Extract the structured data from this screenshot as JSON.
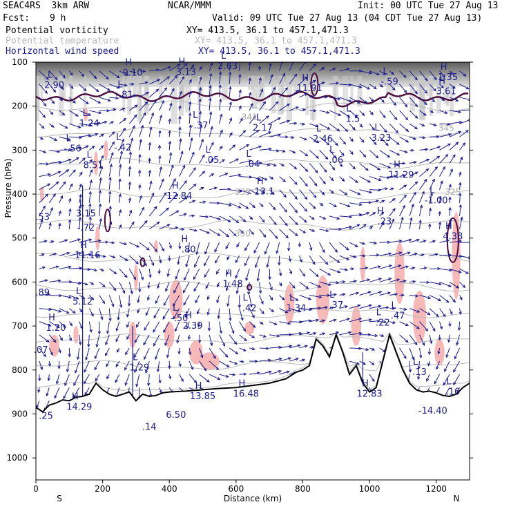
{
  "header": {
    "model": "SEAC4RS  3km ARW",
    "org": "NCAR/MMM",
    "init": "Init: 00 UTC Tue 27 Aug 13",
    "fcst_label": "Fcst:",
    "fcst_value": "9 h",
    "valid": "Valid: 09 UTC Tue 27 Aug 13 (04 CDT Tue 27 Aug 13)",
    "fields": [
      {
        "name": "Potential vorticity",
        "xy": "XY= 413.5, 36.1 to 457.1,471.3"
      },
      {
        "name": "Potential temperature",
        "xy": "XY= 413.5, 36.1 to 457.1,471.3"
      },
      {
        "name": "Horizontal wind speed",
        "xy": "XY= 413.5, 36.1 to 457.1,471.3"
      }
    ]
  },
  "colors": {
    "pv": "#4a0a3a",
    "theta": "#b8b8b8",
    "wind": "#1a1a8c",
    "pink": "#f7b8b8"
  },
  "chart_data": {
    "type": "cross-section",
    "xlabel": "Distance (km)",
    "ylabel": "Pressure (hPa)",
    "xlim": [
      0,
      1300
    ],
    "ylim": [
      1050,
      100
    ],
    "x_ticks": [
      0,
      200,
      400,
      600,
      800,
      1000,
      1200
    ],
    "y_ticks": [
      100,
      200,
      300,
      400,
      500,
      600,
      700,
      800,
      900,
      1000
    ],
    "left_end": "S",
    "right_end": "N",
    "terrain": [
      [
        0,
        885
      ],
      [
        20,
        895
      ],
      [
        40,
        880
      ],
      [
        60,
        875
      ],
      [
        80,
        868
      ],
      [
        100,
        870
      ],
      [
        120,
        862
      ],
      [
        140,
        860
      ],
      [
        160,
        855
      ],
      [
        180,
        830
      ],
      [
        200,
        845
      ],
      [
        220,
        855
      ],
      [
        240,
        860
      ],
      [
        260,
        855
      ],
      [
        280,
        850
      ],
      [
        300,
        870
      ],
      [
        320,
        855
      ],
      [
        340,
        860
      ],
      [
        360,
        858
      ],
      [
        380,
        852
      ],
      [
        400,
        850
      ],
      [
        450,
        848
      ],
      [
        500,
        845
      ],
      [
        550,
        842
      ],
      [
        600,
        840
      ],
      [
        650,
        835
      ],
      [
        700,
        830
      ],
      [
        750,
        820
      ],
      [
        780,
        805
      ],
      [
        800,
        800
      ],
      [
        820,
        790
      ],
      [
        840,
        730
      ],
      [
        860,
        745
      ],
      [
        880,
        770
      ],
      [
        900,
        720
      ],
      [
        920,
        760
      ],
      [
        940,
        810
      ],
      [
        960,
        790
      ],
      [
        980,
        830
      ],
      [
        1000,
        850
      ],
      [
        1020,
        840
      ],
      [
        1040,
        780
      ],
      [
        1060,
        720
      ],
      [
        1080,
        760
      ],
      [
        1100,
        800
      ],
      [
        1120,
        830
      ],
      [
        1140,
        845
      ],
      [
        1160,
        850
      ],
      [
        1180,
        848
      ],
      [
        1200,
        852
      ],
      [
        1220,
        858
      ],
      [
        1240,
        860
      ],
      [
        1260,
        855
      ],
      [
        1280,
        840
      ],
      [
        1300,
        830
      ]
    ],
    "theta_contours": [
      {
        "label": "345",
        "x": 1230,
        "p": 250
      },
      {
        "label": "341",
        "x": 640,
        "p": 225
      },
      {
        "label": "335",
        "x": 620,
        "p": 395
      },
      {
        "label": "330",
        "x": 620,
        "p": 490
      },
      {
        "label": "325",
        "x": 1250,
        "p": 395
      }
    ],
    "extrema": [
      {
        "type": "L",
        "x": 55,
        "p": 148,
        "value": "2.90"
      },
      {
        "type": "H",
        "x": 290,
        "p": 120,
        "value": "9.10"
      },
      {
        "type": "L",
        "x": 265,
        "p": 170,
        "value": "-.81"
      },
      {
        "type": "H",
        "x": 450,
        "p": 118,
        "value": "3.13"
      },
      {
        "type": "L",
        "x": 575,
        "p": 105,
        "value": "2.63"
      },
      {
        "type": "H",
        "x": 820,
        "p": 155,
        "value": "11.91"
      },
      {
        "type": "L",
        "x": 1060,
        "p": 140,
        "value": "-.59"
      },
      {
        "type": "H",
        "x": 1235,
        "p": 130,
        "value": "1.35"
      },
      {
        "type": "H",
        "x": 1230,
        "p": 162,
        "value": "3.61"
      },
      {
        "type": "L",
        "x": 160,
        "p": 235,
        "value": "1.24"
      },
      {
        "type": "L",
        "x": 260,
        "p": 290,
        "value": "-.42"
      },
      {
        "type": "L",
        "x": 490,
        "p": 240,
        "value": "-.37"
      },
      {
        "type": "L",
        "x": 680,
        "p": 245,
        "value": "2.17"
      },
      {
        "type": "L",
        "x": 950,
        "p": 225,
        "value": "1.5"
      },
      {
        "type": "L",
        "x": 860,
        "p": 270,
        "value": "2.46"
      },
      {
        "type": "L",
        "x": 1035,
        "p": 268,
        "value": "3.23"
      },
      {
        "type": "L",
        "x": 110,
        "p": 292,
        "value": "-.56"
      },
      {
        "type": "L",
        "x": 172,
        "p": 330,
        "value": "8.51"
      },
      {
        "type": "L",
        "x": 528,
        "p": 318,
        "value": ".05"
      },
      {
        "type": "L",
        "x": 650,
        "p": 328,
        "value": ".04"
      },
      {
        "type": "L",
        "x": 900,
        "p": 318,
        "value": ".06"
      },
      {
        "type": "H",
        "x": 1095,
        "p": 352,
        "value": "11.29"
      },
      {
        "type": "H",
        "x": 430,
        "p": 400,
        "value": "12.84"
      },
      {
        "type": "H",
        "x": 685,
        "p": 390,
        "value": "13.1"
      },
      {
        "type": "L",
        "x": 1200,
        "p": 410,
        "value": "-1.00"
      },
      {
        "type": "",
        "x": 20,
        "p": 448,
        "value": ".53"
      },
      {
        "type": "L",
        "x": 150,
        "p": 440,
        "value": "3.15"
      },
      {
        "type": "",
        "x": 150,
        "p": 472,
        "value": "-.72"
      },
      {
        "type": "H",
        "x": 1045,
        "p": 458,
        "value": ".23"
      },
      {
        "type": "H",
        "x": 1250,
        "p": 492,
        "value": "4.38"
      },
      {
        "type": "H",
        "x": 155,
        "p": 535,
        "value": "11.16"
      },
      {
        "type": "H",
        "x": 458,
        "p": 522,
        "value": ".80"
      },
      {
        "type": "",
        "x": 20,
        "p": 620,
        "value": ".89"
      },
      {
        "type": "H",
        "x": 590,
        "p": 600,
        "value": "1.48"
      },
      {
        "type": "L",
        "x": 140,
        "p": 640,
        "value": "5.12"
      },
      {
        "type": "L",
        "x": 640,
        "p": 655,
        "value": ".42"
      },
      {
        "type": "L",
        "x": 780,
        "p": 655,
        "value": "1.34"
      },
      {
        "type": "L",
        "x": 900,
        "p": 648,
        "value": ".37"
      },
      {
        "type": "L",
        "x": 1040,
        "p": 688,
        "value": ".22"
      },
      {
        "type": "L",
        "x": 1085,
        "p": 672,
        "value": ".47"
      },
      {
        "type": "L",
        "x": 430,
        "p": 678,
        "value": "-.50"
      },
      {
        "type": "H",
        "x": 470,
        "p": 695,
        "value": "2.39"
      },
      {
        "type": "H",
        "x": 60,
        "p": 700,
        "value": "1.20"
      },
      {
        "type": "",
        "x": 15,
        "p": 750,
        "value": ".07"
      },
      {
        "type": "L",
        "x": 310,
        "p": 790,
        "value": "1.29"
      },
      {
        "type": "H",
        "x": 500,
        "p": 855,
        "value": "13.85"
      },
      {
        "type": "H",
        "x": 630,
        "p": 850,
        "value": "16.48"
      },
      {
        "type": "H",
        "x": 1000,
        "p": 850,
        "value": "12.83"
      },
      {
        "type": "L",
        "x": 1150,
        "p": 800,
        "value": ".13"
      },
      {
        "type": "L",
        "x": 1250,
        "p": 845,
        "value": ".16"
      },
      {
        "type": "",
        "x": 1190,
        "p": 888,
        "value": "-14.40"
      },
      {
        "type": "H",
        "x": 130,
        "p": 880,
        "value": "14.29"
      },
      {
        "type": "",
        "x": 30,
        "p": 900,
        "value": ".25"
      },
      {
        "type": "",
        "x": 420,
        "p": 898,
        "value": "6.50"
      },
      {
        "type": "",
        "x": 340,
        "p": 925,
        "value": ".14"
      }
    ]
  }
}
